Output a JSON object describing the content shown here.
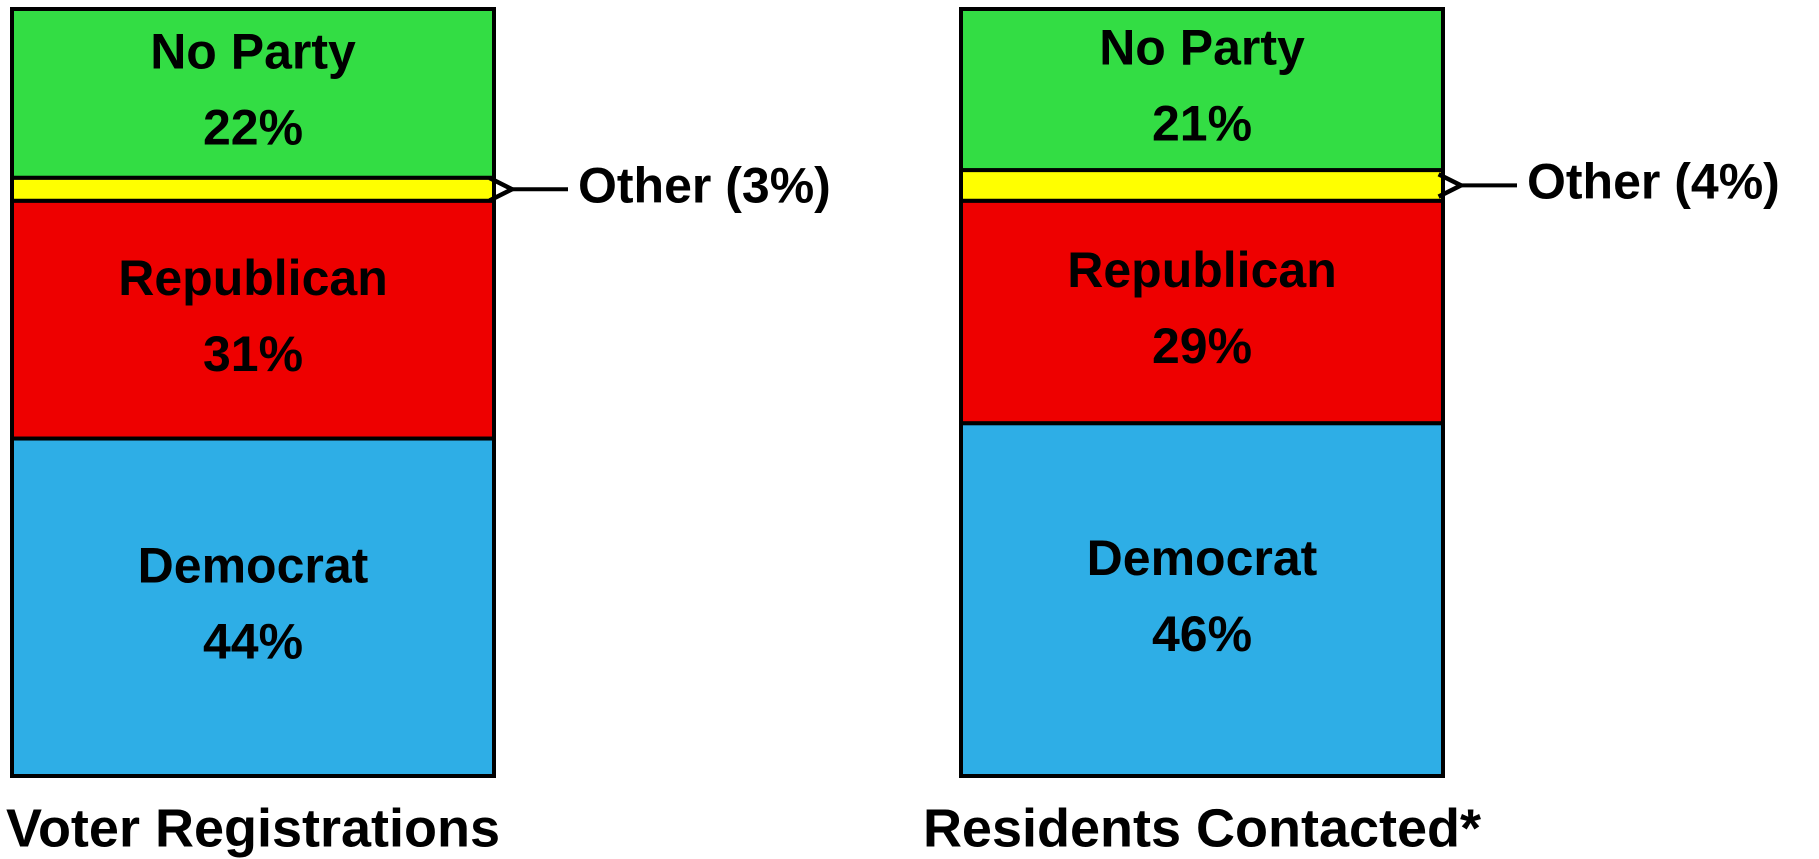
{
  "chart_data": {
    "type": "bar",
    "stacked": true,
    "categories": [
      "Voter Registrations",
      "Residents Contacted*"
    ],
    "series": [
      {
        "name": "Democrat",
        "color": "#2eaee6",
        "values": [
          44,
          46
        ],
        "value_labels": [
          "44%",
          "46%"
        ]
      },
      {
        "name": "Republican",
        "color": "#ee0000",
        "values": [
          31,
          29
        ],
        "value_labels": [
          "31%",
          "29%"
        ]
      },
      {
        "name": "Other",
        "color": "#ffff00",
        "values": [
          3,
          4
        ],
        "value_labels": [
          "Other (3%)",
          "Other (4%)"
        ]
      },
      {
        "name": "No Party",
        "color": "#33dd44",
        "values": [
          22,
          21
        ],
        "value_labels": [
          "22%",
          "21%"
        ]
      }
    ]
  }
}
